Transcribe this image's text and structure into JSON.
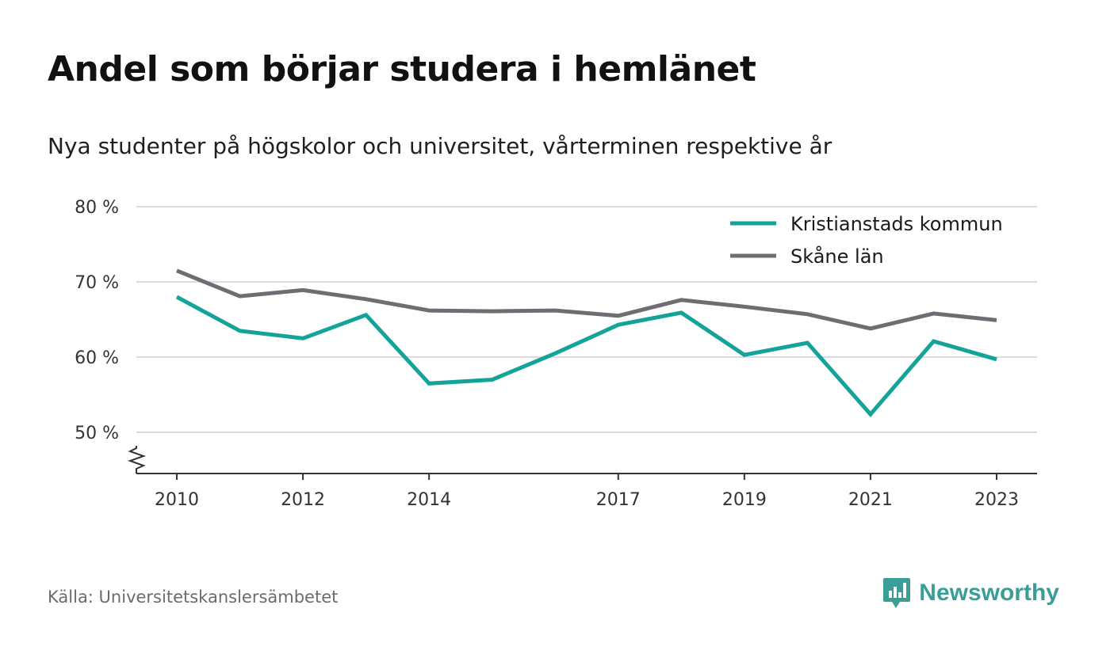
{
  "title": "Andel som börjar studera i hemlänet",
  "subtitle": "Nya studenter på högskolor och universitet, vårterminen respektive år",
  "source": "Källa: Universitetskanslersämbetet",
  "brand": {
    "name": "Newsworthy",
    "icon": "newsworthy-logo-icon",
    "color": "#3a9e96"
  },
  "chart_data": {
    "type": "line",
    "x": [
      2010,
      2011,
      2012,
      2013,
      2014,
      2015,
      2016,
      2017,
      2018,
      2019,
      2020,
      2021,
      2022,
      2023
    ],
    "x_tick_labels": [
      "2010",
      "2012",
      "2014",
      "2017",
      "2019",
      "2021",
      "2023"
    ],
    "x_tick_values": [
      2010,
      2012,
      2014,
      2017,
      2019,
      2021,
      2023
    ],
    "y_tick_labels": [
      "50 %",
      "60 %",
      "70 %",
      "80 %"
    ],
    "y_tick_values": [
      50,
      60,
      70,
      80
    ],
    "ylim": [
      45,
      80
    ],
    "y_axis_break": true,
    "grid": true,
    "legend_position": "top-right",
    "series": [
      {
        "name": "Kristianstads kommun",
        "color": "#14a39a",
        "values": [
          68.0,
          63.5,
          62.5,
          65.6,
          56.5,
          57.0,
          60.5,
          64.3,
          65.9,
          60.3,
          61.9,
          52.4,
          62.1,
          59.7
        ]
      },
      {
        "name": "Skåne län",
        "color": "#6f6c73",
        "values": [
          71.5,
          68.1,
          68.9,
          67.7,
          66.2,
          66.1,
          66.2,
          65.5,
          67.6,
          66.7,
          65.7,
          63.8,
          65.8,
          64.9
        ]
      }
    ]
  }
}
